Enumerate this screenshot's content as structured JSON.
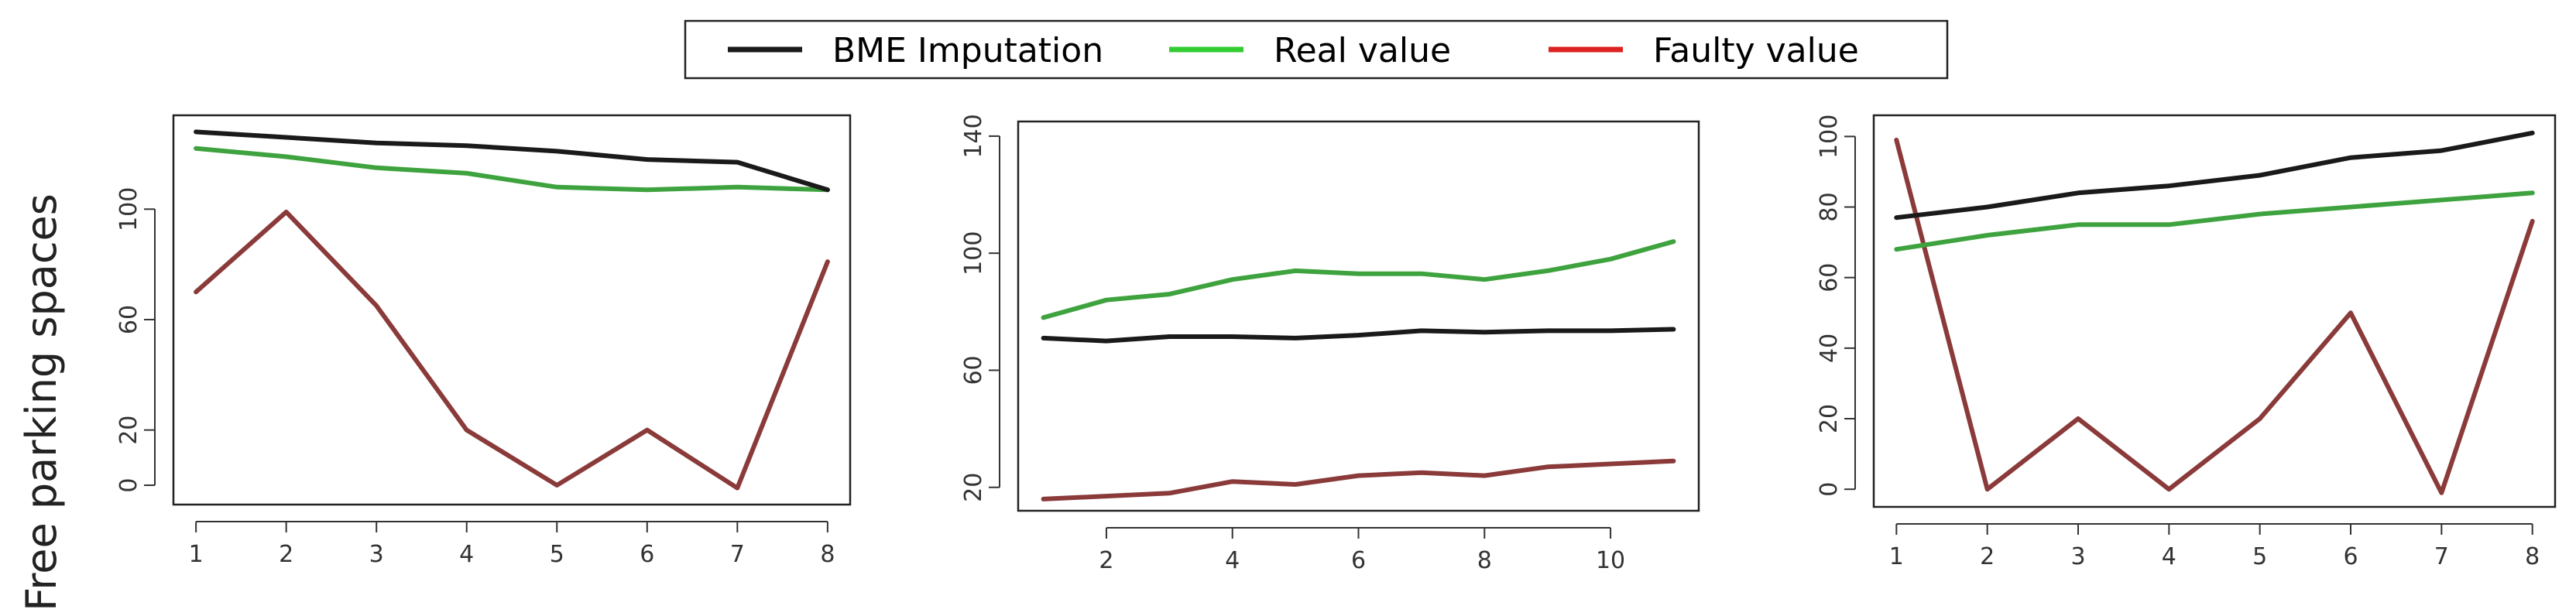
{
  "legend": {
    "entries": [
      {
        "label": "BME Imputation",
        "color": "#1a1a1a"
      },
      {
        "label": "Real value",
        "color": "#33cc33"
      },
      {
        "label": "Faulty value",
        "color": "#dd2222"
      }
    ]
  },
  "ylabel": "Free parking spaces",
  "chart_data": [
    {
      "type": "line",
      "x": [
        1,
        2,
        3,
        4,
        5,
        6,
        7,
        8
      ],
      "xlim": [
        0.75,
        8.25
      ],
      "ylim": [
        -7,
        134
      ],
      "xticks": [
        1,
        2,
        3,
        4,
        5,
        6,
        7,
        8
      ],
      "yticks": [
        0,
        20,
        60,
        100
      ],
      "series": [
        {
          "name": "BME Imputation",
          "color": "#1a1a1a",
          "values": [
            128,
            126,
            124,
            123,
            121,
            118,
            117,
            107
          ]
        },
        {
          "name": "Real value",
          "color": "#3ea33e",
          "values": [
            122,
            119,
            115,
            113,
            108,
            107,
            108,
            107
          ]
        },
        {
          "name": "Faulty value",
          "color": "#8b3a3a",
          "values": [
            70,
            99,
            65,
            20,
            0,
            20,
            -1,
            81
          ]
        }
      ],
      "legend": "top"
    },
    {
      "type": "line",
      "x": [
        1,
        2,
        3,
        4,
        5,
        6,
        7,
        8,
        9,
        10,
        11
      ],
      "xlim": [
        0.6,
        11.4
      ],
      "ylim": [
        12,
        145
      ],
      "xticks": [
        2,
        4,
        6,
        8,
        10
      ],
      "yticks": [
        20,
        60,
        100,
        140
      ],
      "series": [
        {
          "name": "BME Imputation",
          "color": "#1a1a1a",
          "values": [
            71,
            70,
            71.5,
            71.5,
            71,
            72,
            73.5,
            73,
            73.5,
            73.5,
            74
          ]
        },
        {
          "name": "Real value",
          "color": "#3ea33e",
          "values": [
            78,
            84,
            86,
            91,
            94,
            93,
            93,
            91,
            94,
            98,
            104
          ]
        },
        {
          "name": "Faulty value",
          "color": "#8b3a3a",
          "values": [
            16,
            17,
            18,
            22,
            21,
            24,
            25,
            24,
            27,
            28,
            29
          ]
        }
      ],
      "legend": "top"
    },
    {
      "type": "line",
      "x": [
        1,
        2,
        3,
        4,
        5,
        6,
        7,
        8
      ],
      "xlim": [
        0.75,
        8.25
      ],
      "ylim": [
        -5,
        106
      ],
      "xticks": [
        1,
        2,
        3,
        4,
        5,
        6,
        7,
        8
      ],
      "yticks": [
        0,
        20,
        40,
        60,
        80,
        100
      ],
      "series": [
        {
          "name": "BME Imputation",
          "color": "#1a1a1a",
          "values": [
            77,
            80,
            84,
            86,
            89,
            94,
            96,
            101
          ]
        },
        {
          "name": "Real value",
          "color": "#3ea33e",
          "values": [
            68,
            72,
            75,
            75,
            78,
            80,
            82,
            84
          ]
        },
        {
          "name": "Faulty value",
          "color": "#8b3a3a",
          "values": [
            99,
            0,
            20,
            0,
            20,
            50,
            -1,
            76
          ]
        }
      ],
      "legend": "top"
    }
  ]
}
